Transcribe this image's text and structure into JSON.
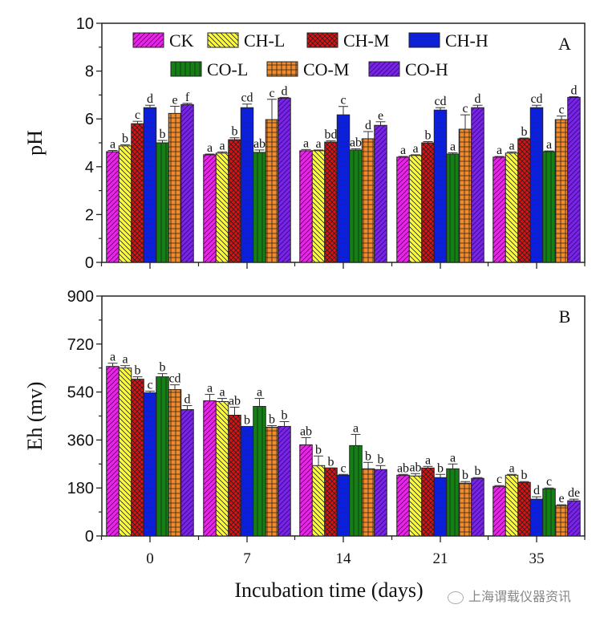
{
  "chart_data": [
    {
      "type": "bar",
      "panel": "A",
      "title": "",
      "xlabel": "",
      "ylabel": "pH",
      "ylim": [
        0,
        10
      ],
      "yticks": [
        0,
        2,
        4,
        6,
        8,
        10
      ],
      "categories": [
        "0",
        "7",
        "14",
        "21",
        "35"
      ],
      "legend": {
        "placement": "top",
        "entries": [
          "CK",
          "CH-L",
          "CH-M",
          "CH-H",
          "CO-L",
          "CO-M",
          "CO-H"
        ]
      },
      "series": [
        {
          "name": "CK",
          "values": [
            4.63,
            4.5,
            4.67,
            4.4,
            4.4
          ],
          "errors": [
            0.05,
            0.03,
            0.05,
            0.03,
            0.03
          ],
          "letters": [
            "a",
            "a",
            "a",
            "a",
            "a"
          ]
        },
        {
          "name": "CH-L",
          "values": [
            4.87,
            4.57,
            4.67,
            4.47,
            4.57
          ],
          "errors": [
            0.05,
            0.05,
            0.03,
            0.03,
            0.05
          ],
          "letters": [
            "b",
            "a",
            "a",
            "a",
            "a"
          ]
        },
        {
          "name": "CH-M",
          "values": [
            5.8,
            5.13,
            5.03,
            5.0,
            5.17
          ],
          "errors": [
            0.1,
            0.08,
            0.05,
            0.05,
            0.03
          ],
          "letters": [
            "c",
            "b",
            "bd",
            "b",
            "b"
          ]
        },
        {
          "name": "CH-H",
          "values": [
            6.47,
            6.47,
            6.17,
            6.37,
            6.47
          ],
          "errors": [
            0.1,
            0.15,
            0.35,
            0.1,
            0.1
          ],
          "letters": [
            "d",
            "cd",
            "c",
            "cd",
            "cd"
          ]
        },
        {
          "name": "CO-L",
          "values": [
            5.0,
            4.6,
            4.7,
            4.53,
            4.63
          ],
          "errors": [
            0.1,
            0.1,
            0.05,
            0.05,
            0.03
          ],
          "letters": [
            "b",
            "ab",
            "ab",
            "a",
            "a"
          ]
        },
        {
          "name": "CO-M",
          "values": [
            6.23,
            5.97,
            5.17,
            5.57,
            5.97
          ],
          "errors": [
            0.3,
            0.85,
            0.3,
            0.6,
            0.15
          ],
          "letters": [
            "e",
            "c",
            "d",
            "c",
            "c"
          ]
        },
        {
          "name": "CO-H",
          "values": [
            6.6,
            6.87,
            5.73,
            6.47,
            6.9
          ],
          "errors": [
            0.05,
            0.03,
            0.15,
            0.1,
            0.03
          ],
          "letters": [
            "f",
            "d",
            "e",
            "d",
            "d"
          ]
        }
      ]
    },
    {
      "type": "bar",
      "panel": "B",
      "title": "",
      "xlabel": "Incubation time (days)",
      "ylabel": "Eh (mv)",
      "ylim": [
        0,
        900
      ],
      "yticks": [
        0,
        180,
        360,
        540,
        720,
        900
      ],
      "categories": [
        "0",
        "7",
        "14",
        "21",
        "35"
      ],
      "series": [
        {
          "name": "CK",
          "values": [
            636,
            507,
            342,
            228,
            186
          ],
          "errors": [
            12,
            24,
            27,
            3,
            3
          ],
          "letters": [
            "a",
            "a",
            "ab",
            "ab",
            "c"
          ]
        },
        {
          "name": "CH-L",
          "values": [
            630,
            504,
            264,
            225,
            228
          ],
          "errors": [
            9,
            12,
            36,
            9,
            3
          ],
          "letters": [
            "a",
            "a",
            "b",
            "ab",
            "a"
          ]
        },
        {
          "name": "CH-M",
          "values": [
            588,
            453,
            255,
            255,
            201
          ],
          "errors": [
            9,
            30,
            0,
            6,
            3
          ],
          "letters": [
            "b",
            "ab",
            "b",
            "a",
            "b"
          ]
        },
        {
          "name": "CH-H",
          "values": [
            537,
            411,
            228,
            219,
            138
          ],
          "errors": [
            6,
            0,
            3,
            12,
            9
          ],
          "letters": [
            "c",
            "b",
            "c",
            "b",
            "d"
          ]
        },
        {
          "name": "CO-L",
          "values": [
            597,
            486,
            339,
            252,
            177
          ],
          "errors": [
            12,
            30,
            42,
            18,
            3
          ],
          "letters": [
            "b",
            "a",
            "a",
            "a",
            "c"
          ]
        },
        {
          "name": "CO-M",
          "values": [
            549,
            408,
            252,
            198,
            114
          ],
          "errors": [
            18,
            6,
            24,
            6,
            3
          ],
          "letters": [
            "cd",
            "b",
            "b",
            "b",
            "e"
          ]
        },
        {
          "name": "CO-H",
          "values": [
            474,
            411,
            249,
            216,
            132
          ],
          "errors": [
            15,
            18,
            15,
            3,
            6
          ],
          "letters": [
            "d",
            "b",
            "b",
            "b",
            "de"
          ]
        }
      ]
    }
  ],
  "series_styles": [
    {
      "name": "CK",
      "color": "#ee22ee",
      "pattern": "diag-up"
    },
    {
      "name": "CH-L",
      "color": "#ffff33",
      "pattern": "diag-down"
    },
    {
      "name": "CH-M",
      "color": "#dd1111",
      "pattern": "crosshatch"
    },
    {
      "name": "CH-H",
      "color": "#0a1fe0",
      "pattern": "horizontal"
    },
    {
      "name": "CO-L",
      "color": "#128012",
      "pattern": "vertical"
    },
    {
      "name": "CO-M",
      "color": "#f28a2a",
      "pattern": "grid"
    },
    {
      "name": "CO-H",
      "color": "#7a22ee",
      "pattern": "diag-up"
    }
  ],
  "watermark": "上海谓载仪器资讯"
}
